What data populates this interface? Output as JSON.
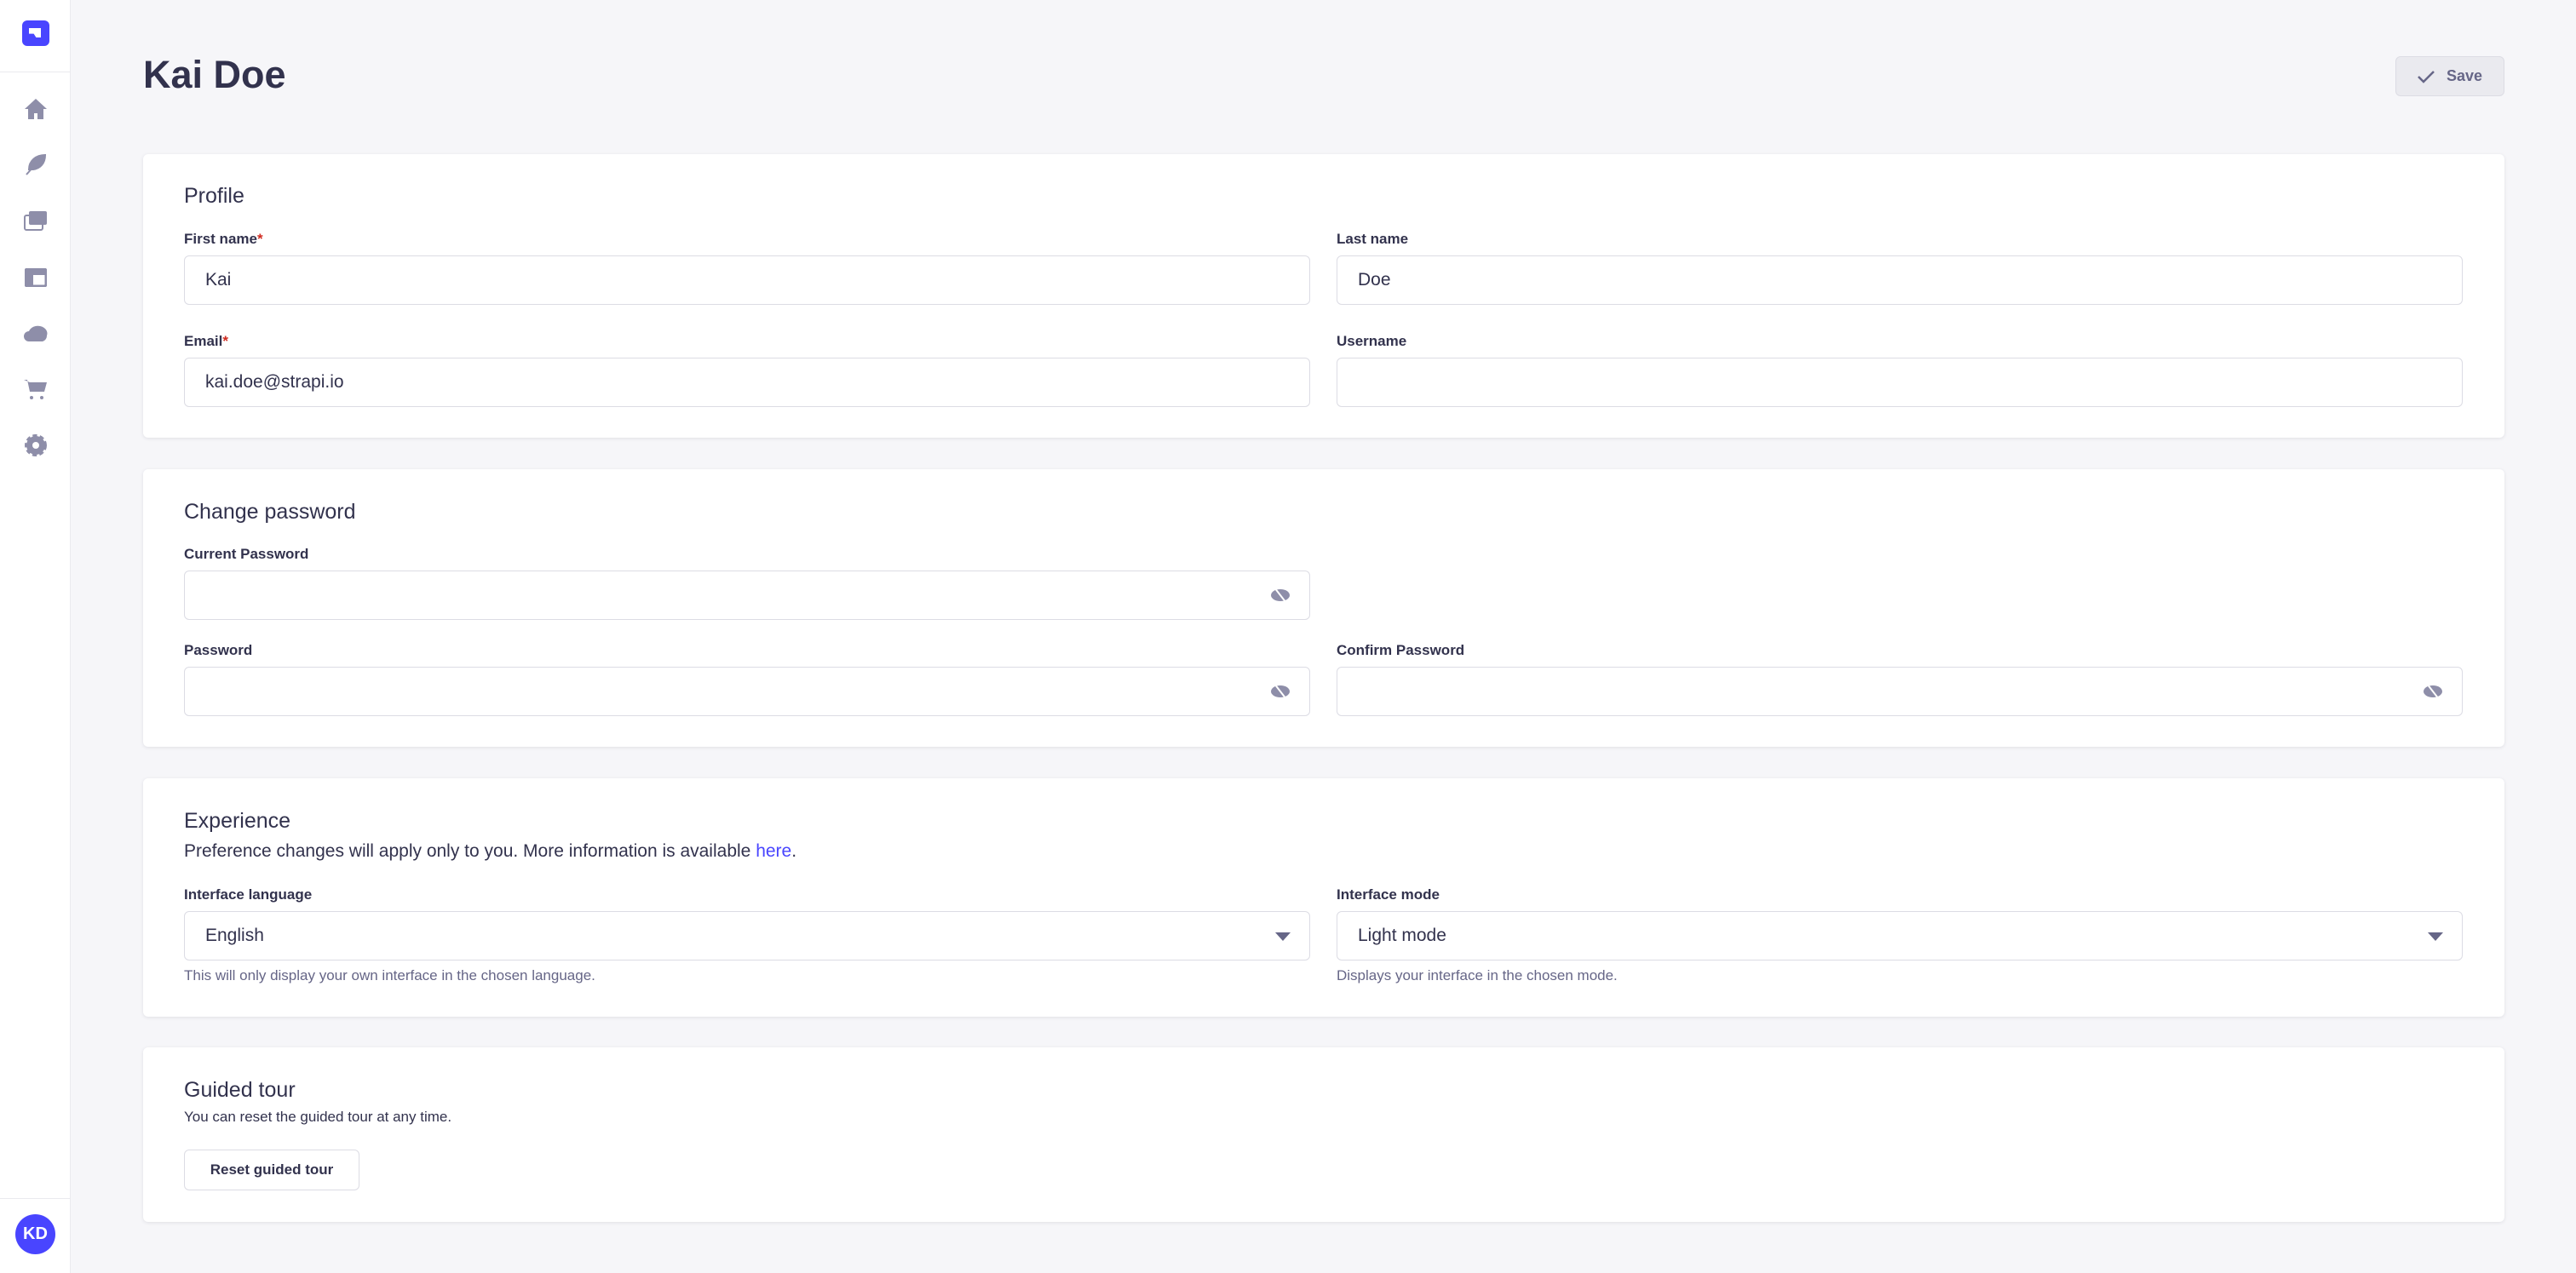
{
  "sidebar": {
    "logo": "strapi-logo",
    "items": [
      {
        "icon": "home-icon",
        "label": "Home"
      },
      {
        "icon": "feather-icon",
        "label": "Content Manager"
      },
      {
        "icon": "media-icon",
        "label": "Media Library"
      },
      {
        "icon": "layout-icon",
        "label": "Content-Type Builder"
      },
      {
        "icon": "cloud-icon",
        "label": "Deploy"
      },
      {
        "icon": "cart-icon",
        "label": "Marketplace"
      },
      {
        "icon": "gear-icon",
        "label": "Settings"
      }
    ],
    "avatar_initials": "KD"
  },
  "header": {
    "title": "Kai Doe",
    "save_label": "Save"
  },
  "profile": {
    "title": "Profile",
    "first_name_label": "First name",
    "first_name": "Kai",
    "last_name_label": "Last name",
    "last_name": "Doe",
    "email_label": "Email",
    "email": "kai.doe@strapi.io",
    "username_label": "Username",
    "username": "",
    "required_mark": "*"
  },
  "password": {
    "title": "Change password",
    "current_label": "Current Password",
    "password_label": "Password",
    "confirm_label": "Confirm Password"
  },
  "experience": {
    "title": "Experience",
    "desc_prefix": "Preference changes will apply only to you. More information is available ",
    "desc_link": "here",
    "desc_suffix": ".",
    "language_label": "Interface language",
    "language_value": "English",
    "language_hint": "This will only display your own interface in the chosen language.",
    "mode_label": "Interface mode",
    "mode_value": "Light mode",
    "mode_hint": "Displays your interface in the chosen mode."
  },
  "tour": {
    "title": "Guided tour",
    "desc": "You can reset the guided tour at any time.",
    "button": "Reset guided tour"
  },
  "colors": {
    "accent": "#4945ff",
    "text": "#32324d",
    "muted": "#666687",
    "required": "#d02b20"
  }
}
